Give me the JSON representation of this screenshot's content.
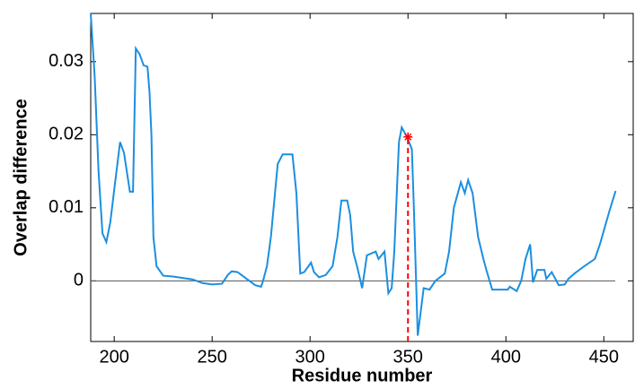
{
  "chart_data": {
    "type": "line",
    "xlabel": "Residue number",
    "ylabel": "Overlap difference",
    "xlim": [
      188,
      465
    ],
    "ylim": [
      -0.0083,
      0.0366
    ],
    "xticks": [
      200,
      250,
      300,
      350,
      400,
      450
    ],
    "yticks": [
      0,
      0.01,
      0.02,
      0.03
    ],
    "reference_line": 0,
    "series": [
      {
        "color": "#1b8fe0",
        "x": [
          188,
          190,
          192,
          194,
          196,
          198,
          200,
          203,
          205,
          207,
          208,
          209.6,
          211,
          213,
          215,
          217,
          218,
          219,
          220,
          221.6,
          225,
          230,
          240,
          245,
          250,
          255,
          258,
          260,
          263,
          268,
          272,
          275,
          276,
          278,
          280,
          283.5,
          286,
          291,
          293,
          295,
          297,
          300.5,
          302,
          304.6,
          308,
          311.5,
          314,
          316,
          319,
          320.5,
          322,
          324,
          326.6,
          329,
          333.5,
          335,
          338,
          340,
          341.7,
          343,
          345.4,
          346.8,
          349.5,
          352,
          353,
          355,
          358,
          361,
          364,
          368.8,
          371,
          373.4,
          377,
          379,
          380.7,
          383,
          385.8,
          388.5,
          390,
          393,
          401,
          402,
          405.5,
          407.8,
          410,
          412.4,
          413.8,
          416,
          419.7,
          420.6,
          423.4,
          427,
          430,
          432,
          435,
          440,
          445.4,
          448,
          452.8,
          456
        ],
        "values": [
          0.0366,
          0.028,
          0.015,
          0.0065,
          0.0053,
          0.008,
          0.0125,
          0.019,
          0.0175,
          0.014,
          0.0122,
          0.0122,
          0.0318,
          0.031,
          0.0295,
          0.0293,
          0.026,
          0.02,
          0.006,
          0.002,
          0.0007,
          0.0006,
          0.0002,
          -0.0003,
          -0.0005,
          -0.0004,
          0.0008,
          0.0013,
          0.0012,
          0.0002,
          -0.0006,
          -0.0008,
          0,
          0.002,
          0.006,
          0.016,
          0.0173,
          0.0173,
          0.012,
          0.001,
          0.0012,
          0.0025,
          0.0012,
          0.0005,
          0.0008,
          0.002,
          0.006,
          0.011,
          0.011,
          0.009,
          0.004,
          0.002,
          -0.001,
          0.0035,
          0.004,
          0.003,
          0.004,
          -0.0017,
          -0.001,
          0.004,
          0.019,
          0.021,
          0.0197,
          0.018,
          0.01,
          -0.0075,
          -0.001,
          -0.0012,
          0.0,
          0.001,
          0.004,
          0.01,
          0.0135,
          0.012,
          0.0138,
          0.012,
          0.006,
          0.003,
          0.0015,
          -0.0012,
          -0.0012,
          -0.0008,
          -0.0014,
          0.0,
          0.003,
          0.005,
          -0.0002,
          0.0015,
          0.0015,
          0.0003,
          0.0012,
          -0.0006,
          -0.0005,
          0.0003,
          0.001,
          0.002,
          0.003,
          0.005,
          0.0095,
          0.0123
        ]
      }
    ],
    "highlight": {
      "x": 350,
      "y": 0.0197,
      "color": "#ff0000"
    }
  }
}
